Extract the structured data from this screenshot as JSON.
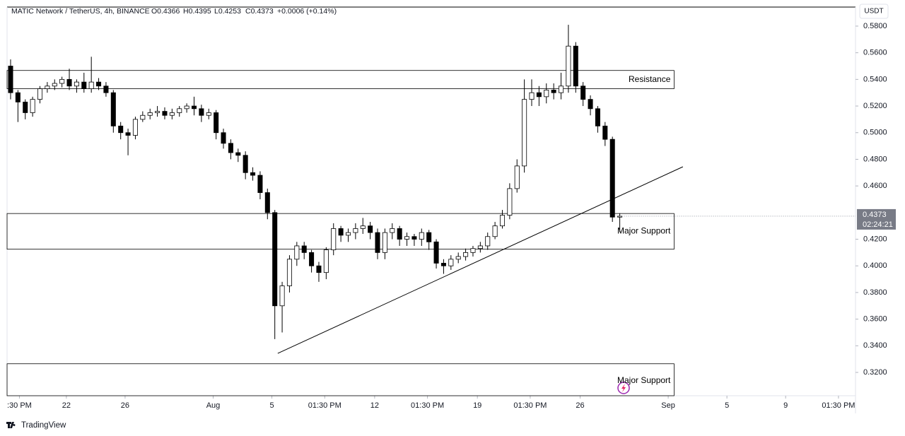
{
  "chart_data": {
    "type": "candlestick",
    "title": "MATIC Network / TetherUS, 4h, BINANCE",
    "ohlc_readout": [
      "O0.4366",
      "H0.4395",
      "L0.4253",
      "C0.4373",
      "+0.0006 (+0.14%)"
    ],
    "y_axis_unit": "USDT",
    "last_price": 0.4373,
    "countdown": "02:24:21",
    "brand": "TradingView",
    "up_color": "#ffffff",
    "down_color": "#000000",
    "edge_color": "#000000",
    "ylim": [
      0.3025,
      0.5943
    ],
    "yticks": [
      {
        "value": 0.32,
        "label": "0.3200"
      },
      {
        "value": 0.34,
        "label": "0.3400"
      },
      {
        "value": 0.36,
        "label": "0.3600"
      },
      {
        "value": 0.38,
        "label": "0.3800"
      },
      {
        "value": 0.4,
        "label": "0.4000"
      },
      {
        "value": 0.42,
        "label": "0.4200"
      },
      {
        "value": 0.46,
        "label": "0.4600"
      },
      {
        "value": 0.48,
        "label": "0.4800"
      },
      {
        "value": 0.5,
        "label": "0.5000"
      },
      {
        "value": 0.52,
        "label": "0.5200"
      },
      {
        "value": 0.54,
        "label": "0.5400"
      },
      {
        "value": 0.56,
        "label": "0.5600"
      },
      {
        "value": 0.58,
        "label": "0.5800"
      }
    ],
    "xlim": [
      -0.48,
      115.12
    ],
    "xticks": [
      {
        "value": 1.2,
        "label": ":30 PM"
      },
      {
        "value": 7.6,
        "label": "22"
      },
      {
        "value": 15.6,
        "label": "26"
      },
      {
        "value": 27.6,
        "label": "Aug"
      },
      {
        "value": 35.6,
        "label": "5"
      },
      {
        "value": 42.8,
        "label": "01:30 PM"
      },
      {
        "value": 49.6,
        "label": "12"
      },
      {
        "value": 56.8,
        "label": "01:30 PM"
      },
      {
        "value": 63.6,
        "label": "19"
      },
      {
        "value": 70.8,
        "label": "01:30 PM"
      },
      {
        "value": 77.6,
        "label": "26"
      },
      {
        "value": 89.6,
        "label": "Sep"
      },
      {
        "value": 97.6,
        "label": "5"
      },
      {
        "value": 105.6,
        "label": "9"
      },
      {
        "value": 112.8,
        "label": "01:30 PM"
      }
    ],
    "open": [
      0.55,
      0.53,
      0.523,
      0.515,
      0.525,
      0.533,
      0.535,
      0.537,
      0.54,
      0.535,
      0.538,
      0.533,
      0.538,
      0.535,
      0.53,
      0.505,
      0.5,
      0.498,
      0.51,
      0.513,
      0.515,
      0.516,
      0.513,
      0.515,
      0.518,
      0.52,
      0.518,
      0.513,
      0.515,
      0.5,
      0.492,
      0.485,
      0.483,
      0.47,
      0.468,
      0.455,
      0.44,
      0.37,
      0.385,
      0.405,
      0.415,
      0.41,
      0.4,
      0.395,
      0.412,
      0.428,
      0.423,
      0.425,
      0.428,
      0.43,
      0.425,
      0.41,
      0.425,
      0.428,
      0.42,
      0.422,
      0.42,
      0.425,
      0.418,
      0.402,
      0.4,
      0.405,
      0.407,
      0.41,
      0.413,
      0.415,
      0.422,
      0.43,
      0.438,
      0.458,
      0.475,
      0.525,
      0.53,
      0.527,
      0.532,
      0.53,
      0.535,
      0.565,
      0.535,
      0.525,
      0.518,
      0.505,
      0.495,
      0.4366
    ],
    "high": [
      0.555,
      0.532,
      0.525,
      0.527,
      0.535,
      0.538,
      0.54,
      0.542,
      0.548,
      0.54,
      0.545,
      0.557,
      0.541,
      0.538,
      0.532,
      0.508,
      0.503,
      0.512,
      0.516,
      0.518,
      0.52,
      0.519,
      0.518,
      0.52,
      0.522,
      0.527,
      0.521,
      0.518,
      0.517,
      0.503,
      0.495,
      0.488,
      0.486,
      0.474,
      0.471,
      0.458,
      0.442,
      0.388,
      0.408,
      0.418,
      0.418,
      0.412,
      0.403,
      0.414,
      0.432,
      0.43,
      0.428,
      0.432,
      0.436,
      0.433,
      0.428,
      0.428,
      0.432,
      0.43,
      0.425,
      0.424,
      0.428,
      0.427,
      0.42,
      0.405,
      0.408,
      0.41,
      0.413,
      0.415,
      0.418,
      0.425,
      0.433,
      0.442,
      0.462,
      0.48,
      0.54,
      0.54,
      0.535,
      0.537,
      0.537,
      0.545,
      0.581,
      0.568,
      0.538,
      0.528,
      0.52,
      0.508,
      0.497,
      0.4395
    ],
    "low": [
      0.525,
      0.508,
      0.51,
      0.512,
      0.522,
      0.53,
      0.532,
      0.534,
      0.532,
      0.53,
      0.53,
      0.53,
      0.532,
      0.527,
      0.5,
      0.495,
      0.483,
      0.495,
      0.508,
      0.51,
      0.512,
      0.51,
      0.51,
      0.512,
      0.515,
      0.513,
      0.508,
      0.51,
      0.495,
      0.488,
      0.48,
      0.478,
      0.465,
      0.464,
      0.45,
      0.435,
      0.345,
      0.35,
      0.38,
      0.4,
      0.405,
      0.395,
      0.388,
      0.39,
      0.408,
      0.418,
      0.418,
      0.42,
      0.424,
      0.42,
      0.405,
      0.405,
      0.42,
      0.415,
      0.415,
      0.415,
      0.415,
      0.412,
      0.398,
      0.394,
      0.397,
      0.402,
      0.404,
      0.407,
      0.41,
      0.412,
      0.42,
      0.428,
      0.435,
      0.455,
      0.47,
      0.52,
      0.52,
      0.522,
      0.525,
      0.525,
      0.53,
      0.53,
      0.52,
      0.513,
      0.5,
      0.49,
      0.433,
      0.4253
    ],
    "close": [
      0.53,
      0.523,
      0.515,
      0.525,
      0.533,
      0.535,
      0.537,
      0.54,
      0.535,
      0.538,
      0.533,
      0.538,
      0.535,
      0.53,
      0.505,
      0.5,
      0.498,
      0.51,
      0.513,
      0.515,
      0.516,
      0.513,
      0.515,
      0.518,
      0.52,
      0.518,
      0.513,
      0.515,
      0.5,
      0.492,
      0.485,
      0.483,
      0.47,
      0.468,
      0.455,
      0.44,
      0.37,
      0.385,
      0.405,
      0.415,
      0.41,
      0.4,
      0.395,
      0.412,
      0.428,
      0.423,
      0.425,
      0.428,
      0.43,
      0.425,
      0.41,
      0.425,
      0.428,
      0.42,
      0.422,
      0.42,
      0.425,
      0.418,
      0.402,
      0.4,
      0.405,
      0.407,
      0.41,
      0.413,
      0.415,
      0.422,
      0.43,
      0.438,
      0.458,
      0.475,
      0.525,
      0.53,
      0.527,
      0.532,
      0.53,
      0.535,
      0.565,
      0.535,
      0.525,
      0.518,
      0.505,
      0.495,
      0.4366,
      0.4373
    ],
    "zone_x_end": 90.4,
    "zones": [
      {
        "label": "Resistance",
        "top": 0.5467,
        "bottom": 0.533
      },
      {
        "label": "Major Support",
        "top": 0.4393,
        "bottom": 0.4125
      },
      {
        "label": "Major Support",
        "top": 0.3265
      }
    ],
    "trendline": {
      "x": [
        36.4,
        91.6
      ],
      "y": [
        0.3343,
        0.4744
      ]
    }
  }
}
